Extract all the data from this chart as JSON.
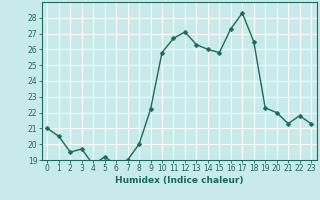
{
  "x": [
    0,
    1,
    2,
    3,
    4,
    5,
    6,
    7,
    8,
    9,
    10,
    11,
    12,
    13,
    14,
    15,
    16,
    17,
    18,
    19,
    20,
    21,
    22,
    23
  ],
  "y": [
    21.0,
    20.5,
    19.5,
    19.7,
    18.7,
    19.2,
    18.7,
    19.0,
    20.0,
    22.2,
    25.8,
    26.7,
    27.1,
    26.3,
    26.0,
    25.8,
    27.3,
    28.3,
    26.5,
    22.3,
    22.0,
    21.3,
    21.8,
    21.3
  ],
  "xlabel": "Humidex (Indice chaleur)",
  "line_color": "#1a6b5a",
  "marker": "D",
  "marker_size": 2.5,
  "line_width": 1.0,
  "bg_color": "#c8eaea",
  "grid_color": "#ffffff",
  "tick_color": "#1a6b5a",
  "label_color": "#1a6b5a",
  "ylim": [
    19,
    29
  ],
  "yticks": [
    19,
    20,
    21,
    22,
    23,
    24,
    25,
    26,
    27,
    28
  ],
  "xlim": [
    -0.5,
    23.5
  ],
  "xticks": [
    0,
    1,
    2,
    3,
    4,
    5,
    6,
    7,
    8,
    9,
    10,
    11,
    12,
    13,
    14,
    15,
    16,
    17,
    18,
    19,
    20,
    21,
    22,
    23
  ],
  "tick_fontsize": 5.5,
  "xlabel_fontsize": 6.5
}
